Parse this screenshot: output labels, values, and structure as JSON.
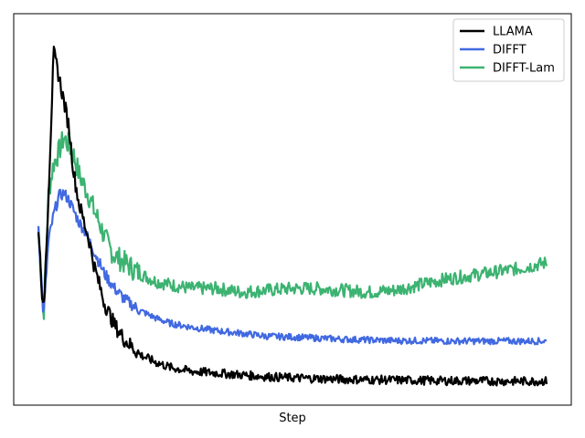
{
  "chart_data": {
    "type": "line",
    "xlabel": "Step",
    "ylabel": "",
    "xlim": [
      0,
      1
    ],
    "ylim": [
      0,
      1
    ],
    "x_ticks_shown": false,
    "y_ticks_shown": false,
    "grid": false,
    "legend_position": "top-right",
    "x": [
      0.0,
      0.01,
      0.02,
      0.03,
      0.04,
      0.05,
      0.06,
      0.07,
      0.08,
      0.09,
      0.1,
      0.11,
      0.12,
      0.13,
      0.14,
      0.15,
      0.17,
      0.2,
      0.23,
      0.26,
      0.3,
      0.35,
      0.4,
      0.45,
      0.5,
      0.55,
      0.6,
      0.65,
      0.7,
      0.75,
      0.8,
      0.85,
      0.9,
      0.95,
      1.0
    ],
    "series": [
      {
        "name": "LLAMA",
        "color": "#000000",
        "values": [
          0.46,
          0.21,
          0.55,
          0.93,
          0.87,
          0.8,
          0.73,
          0.6,
          0.52,
          0.47,
          0.42,
          0.35,
          0.3,
          0.25,
          0.22,
          0.19,
          0.15,
          0.11,
          0.09,
          0.075,
          0.065,
          0.06,
          0.055,
          0.05,
          0.047,
          0.045,
          0.043,
          0.042,
          0.041,
          0.04,
          0.039,
          0.039,
          0.038,
          0.038,
          0.038
        ]
      },
      {
        "name": "DIFFT",
        "color": "#4169E1",
        "values": [
          0.46,
          0.21,
          0.42,
          0.49,
          0.54,
          0.55,
          0.53,
          0.5,
          0.47,
          0.45,
          0.42,
          0.39,
          0.36,
          0.33,
          0.31,
          0.29,
          0.26,
          0.23,
          0.21,
          0.195,
          0.185,
          0.175,
          0.168,
          0.16,
          0.158,
          0.155,
          0.152,
          0.15,
          0.148,
          0.148,
          0.147,
          0.147,
          0.147,
          0.147,
          0.147
        ]
      },
      {
        "name": "DIFFT-Lam",
        "color": "#3CB371",
        "values": [
          0.46,
          0.21,
          0.55,
          0.63,
          0.66,
          0.7,
          0.68,
          0.65,
          0.6,
          0.57,
          0.54,
          0.5,
          0.47,
          0.43,
          0.4,
          0.38,
          0.36,
          0.33,
          0.31,
          0.3,
          0.29,
          0.29,
          0.28,
          0.285,
          0.29,
          0.29,
          0.285,
          0.28,
          0.285,
          0.3,
          0.315,
          0.325,
          0.335,
          0.345,
          0.36
        ]
      }
    ]
  }
}
